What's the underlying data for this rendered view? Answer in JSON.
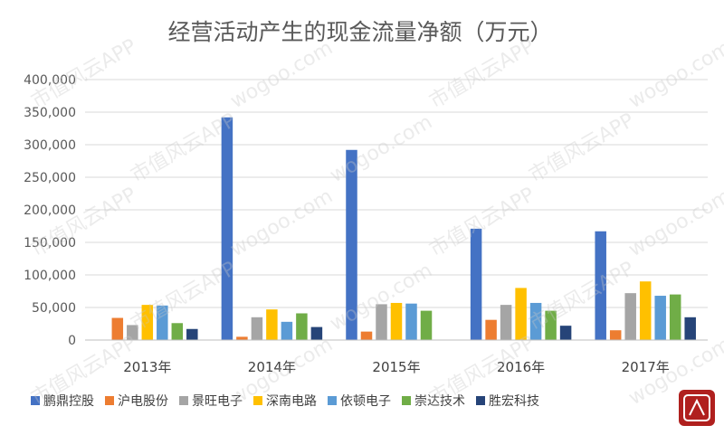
{
  "chart_data": {
    "type": "bar",
    "title": "经营活动产生的现金流量净额（万元）",
    "categories": [
      "2013年",
      "2014年",
      "2015年",
      "2016年",
      "2017年"
    ],
    "series": [
      {
        "name": "鹏鼎控股",
        "color": "#4472c4",
        "values": [
          0,
          342000,
          292000,
          171000,
          167000
        ]
      },
      {
        "name": "沪电股份",
        "color": "#ed7d31",
        "values": [
          34000,
          5000,
          13000,
          31000,
          15000
        ]
      },
      {
        "name": "景旺电子",
        "color": "#a5a5a5",
        "values": [
          23000,
          35000,
          55000,
          54000,
          72000
        ]
      },
      {
        "name": "深南电路",
        "color": "#ffc000",
        "values": [
          54000,
          47000,
          57000,
          80000,
          90000
        ]
      },
      {
        "name": "依顿电子",
        "color": "#5b9bd5",
        "values": [
          53000,
          28000,
          56000,
          57000,
          68000
        ]
      },
      {
        "name": "崇达技术",
        "color": "#70ad47",
        "values": [
          26000,
          41000,
          45000,
          45000,
          70000
        ]
      },
      {
        "name": "胜宏科技",
        "color": "#264478",
        "values": [
          17000,
          20000,
          0,
          22000,
          35000
        ]
      }
    ],
    "y_ticks": [
      "0",
      "50,000",
      "100,000",
      "150,000",
      "200,000",
      "250,000",
      "300,000",
      "350,000",
      "400,000"
    ],
    "ylim": [
      0,
      400000
    ],
    "grid": true,
    "legend_position": "bottom"
  },
  "watermark": {
    "texts": [
      "市值风云APP",
      "wogoo.com"
    ]
  },
  "logo": {
    "label": "市值风云",
    "color": "#b0201e"
  }
}
